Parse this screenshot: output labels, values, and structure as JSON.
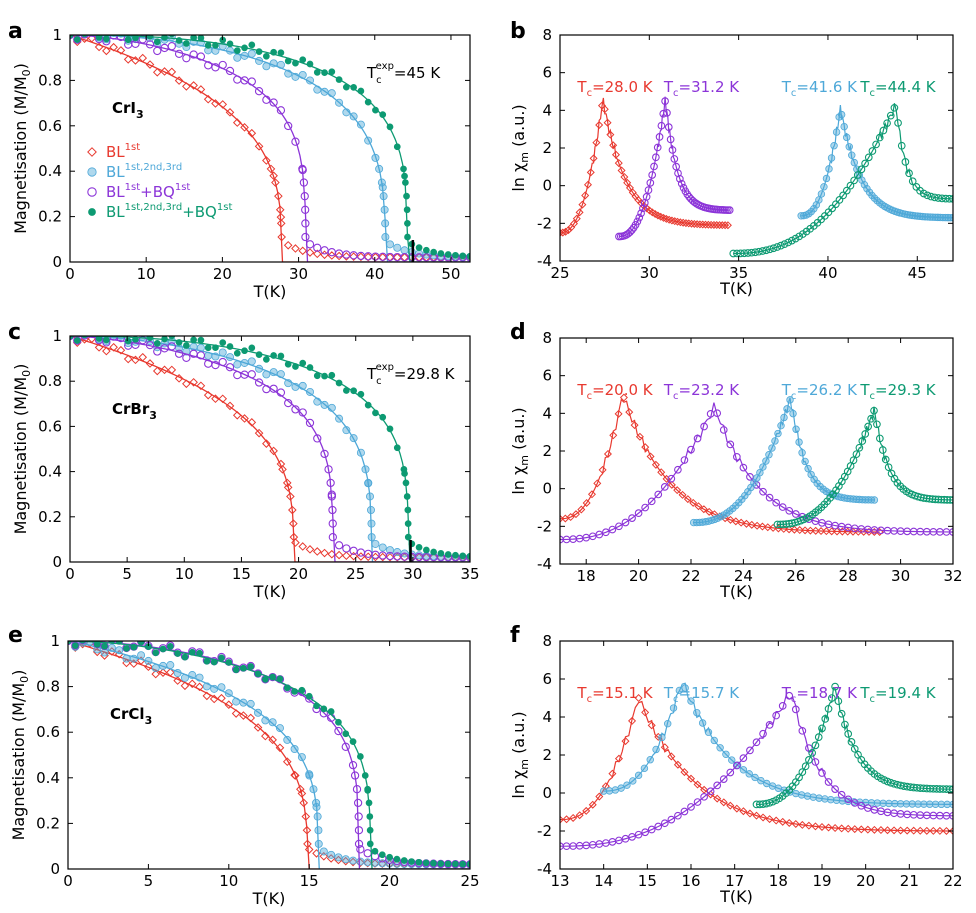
{
  "figure": {
    "panel_letters": [
      "a",
      "b",
      "c",
      "d",
      "e",
      "f"
    ],
    "models": [
      {
        "key": "BL1",
        "base": "BL",
        "sup": "1st",
        "suffix": "",
        "suffix_sup": "",
        "color": "#e8392f",
        "marker": "diamond-open"
      },
      {
        "key": "BL123",
        "base": "BL",
        "sup": "1st,2nd,3rd",
        "suffix": "",
        "suffix_sup": "",
        "color": "#4ea8d8",
        "marker": "circle-filled"
      },
      {
        "key": "BLBQ",
        "base": "BL",
        "sup": "1st",
        "suffix": "+BQ",
        "suffix_sup": "1st",
        "color": "#8c35d8",
        "marker": "circle-open"
      },
      {
        "key": "BL123BQ",
        "base": "BL",
        "sup": "1st,2nd,3rd",
        "suffix": "+BQ",
        "suffix_sup": "1st",
        "color": "#0d9a72",
        "marker": "pentagon-filled"
      }
    ]
  },
  "chart_data": [
    {
      "id": "a",
      "type": "scatter",
      "material": "CrI",
      "material_sub": "3",
      "xlabel": "T(K)",
      "ylabel": "Magnetisation (M/M",
      "ylabel_sub": "0",
      "ylabel_end": ")",
      "xlim": [
        0,
        52.5
      ],
      "ylim": [
        0,
        1
      ],
      "xticks": [
        0,
        10,
        20,
        30,
        40,
        50
      ],
      "yticks": [
        0,
        0.2,
        0.4,
        0.6,
        0.8,
        1
      ],
      "ytick_labels": [
        "0",
        "0.2",
        "0.4",
        "0.6",
        "0.8",
        "1"
      ],
      "annotation": {
        "prefix": "T",
        "sub": "c",
        "sup": "exp",
        "value": "=45 K",
        "tc_exp": 45
      },
      "series": [
        {
          "name": "BL1st",
          "tc": 27.8,
          "beta": 0.3,
          "shape": 1.0
        },
        {
          "name": "BL1st,2nd,3rd",
          "tc": 41.4,
          "beta": 0.28,
          "shape": 2.1
        },
        {
          "name": "BL1st+BQ1st",
          "tc": 30.9,
          "beta": 0.23,
          "shape": 1.6
        },
        {
          "name": "BL1st,2nd,3rd+BQ1st",
          "tc": 44.3,
          "beta": 0.25,
          "shape": 2.4
        }
      ]
    },
    {
      "id": "b",
      "type": "line",
      "xlabel": "T(K)",
      "ylabel": "ln χ",
      "ylabel_sub": "m",
      "ylabel_end": "  (a.u.)",
      "xlim": [
        25,
        47
      ],
      "ylim": [
        -4,
        8
      ],
      "xticks": [
        25,
        30,
        35,
        40,
        45
      ],
      "yticks": [
        -4,
        -2,
        0,
        2,
        4,
        6,
        8
      ],
      "series": [
        {
          "name": "BL1st",
          "tc_label": "28.0 K",
          "x_range": [
            25,
            34.4
          ],
          "peak_x": 27.4,
          "peak_y": 4.6,
          "y_low": -2.5,
          "y_end": -2.1
        },
        {
          "name": "BL1st+BQ1st",
          "tc_label": "31.2 K",
          "x_range": [
            28.3,
            34.5
          ],
          "peak_x": 30.9,
          "peak_y": 4.6,
          "y_low": -2.7,
          "y_end": -1.3
        },
        {
          "name": "BL1st,2nd,3rd",
          "tc_label": "41.6 K",
          "x_range": [
            38.5,
            47
          ],
          "peak_x": 40.7,
          "peak_y": 4.1,
          "y_low": -1.6,
          "y_end": -1.7
        },
        {
          "name": "BL1st,2nd,3rd+BQ1st",
          "tc_label": "44.4 K",
          "x_range": [
            34.7,
            47
          ],
          "peak_x": 43.8,
          "peak_y": 4.3,
          "y_low": -3.6,
          "y_end": -0.7
        }
      ]
    },
    {
      "id": "c",
      "type": "scatter",
      "material": "CrBr",
      "material_sub": "3",
      "xlabel": "T(K)",
      "ylabel": "Magnetisation (M/M",
      "ylabel_sub": "0",
      "ylabel_end": ")",
      "xlim": [
        0,
        35
      ],
      "ylim": [
        0,
        1
      ],
      "xticks": [
        0,
        5,
        10,
        15,
        20,
        25,
        30,
        35
      ],
      "yticks": [
        0,
        0.2,
        0.4,
        0.6,
        0.8,
        1
      ],
      "ytick_labels": [
        "0",
        "0.2",
        "0.4",
        "0.6",
        "0.8",
        "1"
      ],
      "annotation": {
        "prefix": "T",
        "sub": "c",
        "sup": "exp",
        "value": "=29.8 K",
        "tc_exp": 29.8
      },
      "series": [
        {
          "name": "BL1st",
          "tc": 19.6,
          "beta": 0.3,
          "shape": 1.0
        },
        {
          "name": "BL1st,2nd,3rd",
          "tc": 26.4,
          "beta": 0.27,
          "shape": 1.8
        },
        {
          "name": "BL1st+BQ1st",
          "tc": 23.0,
          "beta": 0.24,
          "shape": 1.5
        },
        {
          "name": "BL1st,2nd,3rd+BQ1st",
          "tc": 29.6,
          "beta": 0.25,
          "shape": 2.2
        }
      ]
    },
    {
      "id": "d",
      "type": "line",
      "xlabel": "T(K)",
      "ylabel": "ln χ",
      "ylabel_sub": "m",
      "ylabel_end": "  (a.u.)",
      "xlim": [
        17,
        32
      ],
      "ylim": [
        -4,
        8
      ],
      "xticks": [
        18,
        20,
        22,
        24,
        26,
        28,
        30,
        32
      ],
      "yticks": [
        -4,
        -2,
        0,
        2,
        4,
        6,
        8
      ],
      "series": [
        {
          "name": "BL1st",
          "tc_label": "20.0 K",
          "x_range": [
            17,
            29.2
          ],
          "peak_x": 19.4,
          "peak_y": 5.0,
          "y_low": -1.6,
          "y_end": -2.3
        },
        {
          "name": "BL1st+BQ1st",
          "tc_label": "23.2 K",
          "x_range": [
            17,
            32
          ],
          "peak_x": 22.9,
          "peak_y": 4.4,
          "y_low": -2.7,
          "y_end": -2.3
        },
        {
          "name": "BL1st,2nd,3rd",
          "tc_label": "26.2 K",
          "x_range": [
            22.1,
            29
          ],
          "peak_x": 25.8,
          "peak_y": 4.8,
          "y_low": -1.8,
          "y_end": -0.6
        },
        {
          "name": "BL1st,2nd,3rd+BQ1st",
          "tc_label": "29.3 K",
          "x_range": [
            25.3,
            32
          ],
          "peak_x": 29.0,
          "peak_y": 4.2,
          "y_low": -1.9,
          "y_end": -0.6
        }
      ]
    },
    {
      "id": "e",
      "type": "scatter",
      "material": "CrCl",
      "material_sub": "3",
      "xlabel": "T(K)",
      "ylabel": "Magnetisation (M/M",
      "ylabel_sub": "0",
      "ylabel_end": ")",
      "xlim": [
        0,
        25
      ],
      "ylim": [
        0,
        1
      ],
      "xticks": [
        0,
        5,
        10,
        15,
        20,
        25
      ],
      "yticks": [
        0,
        0.2,
        0.4,
        0.6,
        0.8,
        1
      ],
      "ytick_labels": [
        "0",
        "0.2",
        "0.4",
        "0.6",
        "0.8",
        "1"
      ],
      "annotation": null,
      "series": [
        {
          "name": "BL1st",
          "tc": 14.9,
          "beta": 0.3,
          "shape": 1.0
        },
        {
          "name": "BL1st,2nd,3rd",
          "tc": 15.6,
          "beta": 0.28,
          "shape": 1.1
        },
        {
          "name": "BL1st+BQ1st",
          "tc": 18.1,
          "beta": 0.24,
          "shape": 1.8
        },
        {
          "name": "BL1st,2nd,3rd+BQ1st",
          "tc": 18.8,
          "beta": 0.25,
          "shape": 1.7
        }
      ]
    },
    {
      "id": "f",
      "type": "line",
      "xlabel": "T(K)",
      "ylabel": "ln χ",
      "ylabel_sub": "m",
      "ylabel_end": "  (a.u.)",
      "xlim": [
        13,
        22
      ],
      "ylim": [
        -4,
        8
      ],
      "xticks": [
        13,
        14,
        15,
        16,
        17,
        18,
        19,
        20,
        21,
        22
      ],
      "yticks": [
        -4,
        -2,
        0,
        2,
        4,
        6,
        8
      ],
      "series": [
        {
          "name": "BL1st",
          "tc_label": "15.1 K",
          "x_range": [
            13,
            22
          ],
          "peak_x": 14.8,
          "peak_y": 5.0,
          "y_low": -1.4,
          "y_end": -2.0
        },
        {
          "name": "BL1st,2nd,3rd",
          "tc_label": "15.7 K",
          "x_range": [
            14,
            22
          ],
          "peak_x": 15.8,
          "peak_y": 5.9,
          "y_low": 0.1,
          "y_end": -0.6
        },
        {
          "name": "BL1st+BQ1st",
          "tc_label": "18.7 K",
          "x_range": [
            13,
            22
          ],
          "peak_x": 18.3,
          "peak_y": 5.3,
          "y_low": -2.8,
          "y_end": -1.2
        },
        {
          "name": "BL1st,2nd,3rd+BQ1st",
          "tc_label": "19.4 K",
          "x_range": [
            17.5,
            22
          ],
          "peak_x": 19.3,
          "peak_y": 5.6,
          "y_low": -0.6,
          "y_end": 0.2
        }
      ]
    }
  ]
}
